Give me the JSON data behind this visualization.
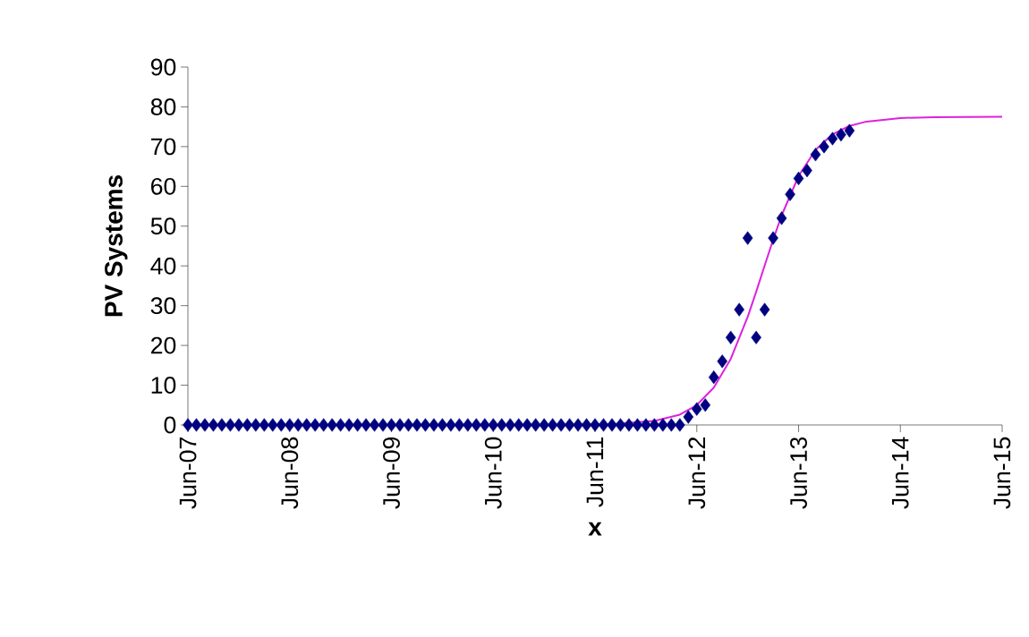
{
  "chart_data": {
    "type": "scatter",
    "xlabel": "x",
    "ylabel": "PV Systems",
    "xlim": [
      "2007-06",
      "2015-06"
    ],
    "ylim": [
      0,
      90
    ],
    "xticks": [
      {
        "value": "2007-06",
        "label": "Jun-07"
      },
      {
        "value": "2008-06",
        "label": "Jun-08"
      },
      {
        "value": "2009-06",
        "label": "Jun-09"
      },
      {
        "value": "2010-06",
        "label": "Jun-10"
      },
      {
        "value": "2011-06",
        "label": "Jun-11"
      },
      {
        "value": "2012-06",
        "label": "Jun-12"
      },
      {
        "value": "2013-06",
        "label": "Jun-13"
      },
      {
        "value": "2014-06",
        "label": "Jun-14"
      },
      {
        "value": "2015-06",
        "label": "Jun-15"
      }
    ],
    "yticks": [
      0,
      10,
      20,
      30,
      40,
      50,
      60,
      70,
      80,
      90
    ],
    "series": [
      {
        "color": "#000080",
        "marker": "diamond",
        "x": [
          "2007-06",
          "2007-07",
          "2007-08",
          "2007-09",
          "2007-10",
          "2007-11",
          "2007-12",
          "2008-01",
          "2008-02",
          "2008-03",
          "2008-04",
          "2008-05",
          "2008-06",
          "2008-07",
          "2008-08",
          "2008-09",
          "2008-10",
          "2008-11",
          "2008-12",
          "2009-01",
          "2009-02",
          "2009-03",
          "2009-04",
          "2009-05",
          "2009-06",
          "2009-07",
          "2009-08",
          "2009-09",
          "2009-10",
          "2009-11",
          "2009-12",
          "2010-01",
          "2010-02",
          "2010-03",
          "2010-04",
          "2010-05",
          "2010-06",
          "2010-07",
          "2010-08",
          "2010-09",
          "2010-10",
          "2010-11",
          "2010-12",
          "2011-01",
          "2011-02",
          "2011-03",
          "2011-04",
          "2011-05",
          "2011-06",
          "2011-07",
          "2011-08",
          "2011-09",
          "2011-10",
          "2011-11",
          "2011-12",
          "2012-01",
          "2012-02",
          "2012-03",
          "2012-04",
          "2012-05",
          "2012-06",
          "2012-07",
          "2012-08",
          "2012-09",
          "2012-10",
          "2012-11",
          "2012-12",
          "2013-01",
          "2013-02",
          "2013-03",
          "2013-04",
          "2013-05",
          "2013-06",
          "2013-07",
          "2013-08",
          "2013-09",
          "2013-10",
          "2013-11",
          "2013-12"
        ],
        "values": [
          0,
          0,
          0,
          0,
          0,
          0,
          0,
          0,
          0,
          0,
          0,
          0,
          0,
          0,
          0,
          0,
          0,
          0,
          0,
          0,
          0,
          0,
          0,
          0,
          0,
          0,
          0,
          0,
          0,
          0,
          0,
          0,
          0,
          0,
          0,
          0,
          0,
          0,
          0,
          0,
          0,
          0,
          0,
          0,
          0,
          0,
          0,
          0,
          0,
          0,
          0,
          0,
          0,
          0,
          0,
          0,
          0,
          0,
          0,
          2,
          4,
          5,
          12,
          16,
          22,
          29,
          47,
          22,
          29,
          47,
          52,
          58,
          62,
          64,
          68,
          70,
          72,
          73,
          74
        ]
      },
      {
        "type": "line",
        "color": "#dd22dd",
        "marker": "none",
        "line_style": "solid",
        "x": [
          "2007-06",
          "2010-10",
          "2011-08",
          "2012-01",
          "2012-04",
          "2012-06",
          "2012-08",
          "2012-10",
          "2012-12",
          "2013-01",
          "2013-02",
          "2013-03",
          "2013-04",
          "2013-06",
          "2013-08",
          "2013-10",
          "2013-12",
          "2014-02",
          "2014-06",
          "2014-10",
          "2015-06"
        ],
        "values": [
          0,
          0,
          0.2,
          1,
          2.6,
          5,
          9.4,
          16.6,
          27.2,
          33.5,
          40.1,
          46.6,
          52.7,
          62.6,
          69.2,
          73.1,
          75.2,
          76.3,
          77.2,
          77.4,
          77.5
        ]
      }
    ]
  }
}
